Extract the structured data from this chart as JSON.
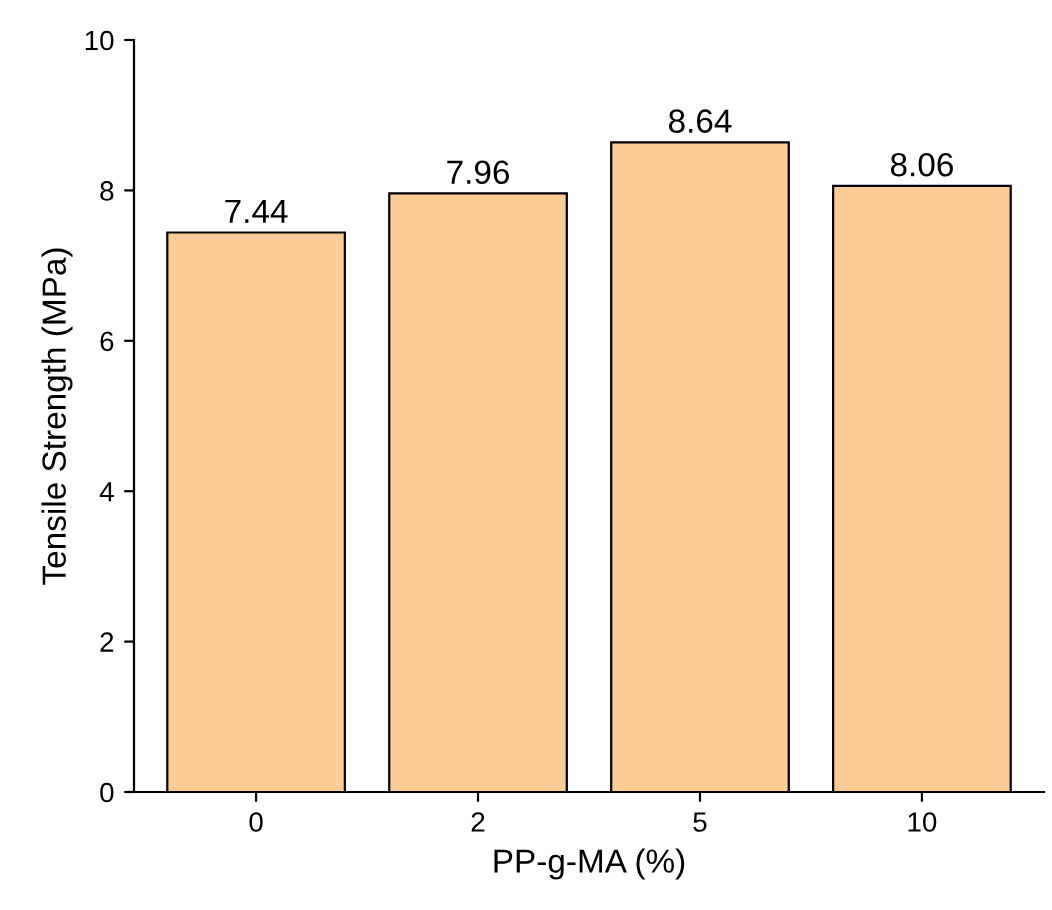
{
  "chart_data": {
    "type": "bar",
    "xlabel": "PP-g-MA (%)",
    "ylabel": "Tensile Strength (MPa)",
    "categories": [
      "0",
      "2",
      "5",
      "10"
    ],
    "values": [
      7.44,
      7.96,
      8.64,
      8.06
    ],
    "color": "#fdcb94",
    "ylim": [
      0,
      10
    ],
    "yticks": [
      0,
      2,
      4,
      6,
      8,
      10
    ],
    "data_labels": true,
    "grid": false
  }
}
